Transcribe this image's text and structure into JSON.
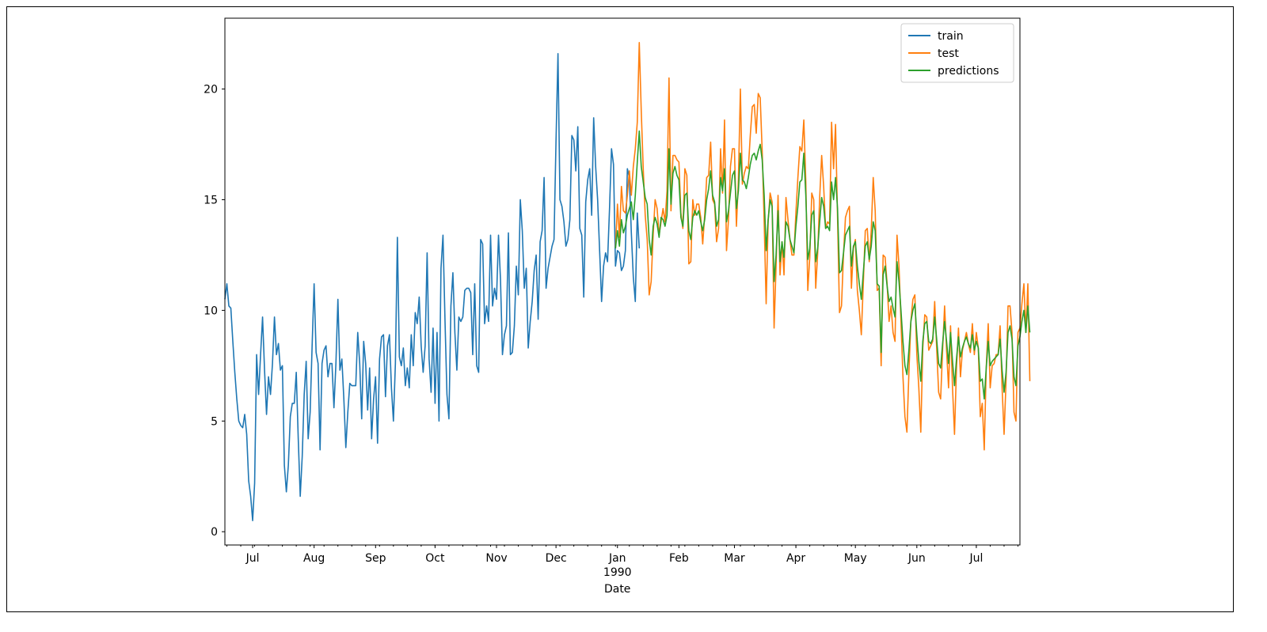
{
  "chart_data": {
    "type": "line",
    "title": "",
    "xlabel": "Date",
    "ylabel": "",
    "ylim": [
      -0.6,
      23.2
    ],
    "xlim": [
      "1989-06-17",
      "1990-07-23"
    ],
    "grid": false,
    "legend_position": "top-right",
    "y_ticks": [
      0,
      5,
      10,
      15,
      20
    ],
    "x_ticks": [
      {
        "date": "1989-07-01",
        "label": "Jul",
        "sublabel": ""
      },
      {
        "date": "1989-08-01",
        "label": "Aug",
        "sublabel": ""
      },
      {
        "date": "1989-09-01",
        "label": "Sep",
        "sublabel": ""
      },
      {
        "date": "1989-10-01",
        "label": "Oct",
        "sublabel": ""
      },
      {
        "date": "1989-11-01",
        "label": "Nov",
        "sublabel": ""
      },
      {
        "date": "1989-12-01",
        "label": "Dec",
        "sublabel": ""
      },
      {
        "date": "1990-01-01",
        "label": "Jan",
        "sublabel": "1990"
      },
      {
        "date": "1990-02-01",
        "label": "Feb",
        "sublabel": ""
      },
      {
        "date": "1990-03-01",
        "label": "Mar",
        "sublabel": ""
      },
      {
        "date": "1990-04-01",
        "label": "Apr",
        "sublabel": ""
      },
      {
        "date": "1990-05-01",
        "label": "May",
        "sublabel": ""
      },
      {
        "date": "1990-06-01",
        "label": "Jun",
        "sublabel": ""
      },
      {
        "date": "1990-07-01",
        "label": "Jul",
        "sublabel": ""
      }
    ],
    "series": [
      {
        "name": "train",
        "color": "#1f77b4",
        "start": "1989-06-17",
        "values": [
          10.5,
          11.2,
          10.2,
          10.1,
          8.6,
          7.2,
          6.0,
          5.0,
          4.8,
          4.7,
          5.3,
          4.4,
          2.3,
          1.6,
          0.5,
          2.2,
          8.0,
          6.2,
          8.0,
          9.7,
          7.3,
          5.3,
          7.0,
          6.2,
          7.6,
          9.7,
          8.0,
          8.5,
          7.3,
          7.5,
          3.0,
          1.8,
          3.0,
          5.2,
          5.8,
          5.8,
          7.2,
          4.2,
          1.6,
          3.4,
          6.2,
          7.7,
          4.2,
          5.4,
          8.4,
          11.2,
          8.1,
          7.6,
          3.7,
          7.6,
          8.2,
          8.4,
          7.0,
          7.6,
          7.6,
          5.6,
          7.6,
          10.5,
          7.3,
          7.8,
          6.0,
          3.8,
          5.4,
          6.7,
          6.6,
          6.6,
          6.6,
          9.0,
          7.6,
          5.1,
          8.6,
          7.6,
          5.5,
          7.4,
          4.2,
          6.0,
          7.0,
          4.0,
          7.8,
          8.8,
          8.9,
          6.1,
          8.4,
          8.9,
          6.5,
          5.0,
          7.6,
          13.3,
          7.9,
          7.5,
          8.3,
          6.6,
          7.4,
          6.5,
          8.9,
          7.5,
          9.9,
          9.4,
          10.6,
          8.4,
          7.2,
          8.4,
          12.6,
          7.8,
          6.3,
          9.2,
          5.8,
          9.0,
          5.0,
          11.9,
          13.4,
          9.6,
          6.2,
          5.1,
          10.2,
          11.7,
          9.0,
          7.3,
          9.7,
          9.5,
          9.7,
          10.9,
          11.0,
          11.0,
          10.8,
          8.0,
          11.2,
          7.5,
          7.2,
          13.2,
          13.0,
          9.4,
          10.2,
          9.5,
          13.4,
          10.2,
          11.0,
          10.5,
          13.4,
          11.4,
          8.0,
          8.9,
          9.3,
          13.5,
          8.0,
          8.1,
          9.3,
          12.0,
          10.7,
          15.0,
          13.6,
          11.0,
          11.9,
          8.3,
          9.5,
          10.4,
          11.8,
          12.5,
          9.6,
          13.1,
          13.6,
          16.0,
          11.0,
          11.9,
          12.4,
          12.9,
          13.2,
          17.6,
          21.6,
          15.0,
          14.7,
          14.0,
          12.9,
          13.2,
          14.1,
          17.9,
          17.7,
          16.3,
          18.3,
          13.7,
          13.4,
          10.6,
          14.9,
          15.9,
          16.4,
          14.3,
          18.7,
          16.5,
          15.0,
          12.7,
          10.4,
          12.0,
          12.6,
          12.2,
          14.6,
          17.3,
          16.6,
          12.0,
          12.7,
          12.6,
          11.8,
          12.0,
          12.7,
          16.4,
          16.0,
          13.5,
          11.5,
          10.4,
          14.4,
          12.8
        ]
      },
      {
        "name": "test",
        "color": "#ff7f0e",
        "start": "1989-12-31",
        "values": [
          12.8,
          14.8,
          13.3,
          15.6,
          14.5,
          14.4,
          15.2,
          16.3,
          15.2,
          16.5,
          17.3,
          18.5,
          22.1,
          19.0,
          16.4,
          14.3,
          13.2,
          10.7,
          11.3,
          13.4,
          15.0,
          14.6,
          13.4,
          14.0,
          14.6,
          14.0,
          15.4,
          20.5,
          14.5,
          17.0,
          17.0,
          16.8,
          16.7,
          14.4,
          13.7,
          16.4,
          16.1,
          12.1,
          12.2,
          15.0,
          14.3,
          14.8,
          14.8,
          14.2,
          13.0,
          14.3,
          16.0,
          16.1,
          17.6,
          15.0,
          14.8,
          13.1,
          13.7,
          17.3,
          15.3,
          18.6,
          12.7,
          14.1,
          16.5,
          17.3,
          17.3,
          13.8,
          15.9,
          20.0,
          15.7,
          16.2,
          16.5,
          16.4,
          17.9,
          19.2,
          19.3,
          18.0,
          19.8,
          19.6,
          17.2,
          14.0,
          10.3,
          14.0,
          15.3,
          14.9,
          9.2,
          12.0,
          15.2,
          11.6,
          13.1,
          11.6,
          15.1,
          14.1,
          13.2,
          12.5,
          12.5,
          14.4,
          16.0,
          17.4,
          17.2,
          18.6,
          15.8,
          10.9,
          12.4,
          15.3,
          15.0,
          11.0,
          12.6,
          15.1,
          17.0,
          15.6,
          13.7,
          14.0,
          13.9,
          18.5,
          16.4,
          18.4,
          14.2,
          9.9,
          10.2,
          12.5,
          14.2,
          14.5,
          14.7,
          11.0,
          12.8,
          13.2,
          10.9,
          10.0,
          8.9,
          11.2,
          13.6,
          13.7,
          12.2,
          13.6,
          16.0,
          14.5,
          10.9,
          11.0,
          7.5,
          12.5,
          12.4,
          11.2,
          9.5,
          10.2,
          9.0,
          8.6,
          13.4,
          12.0,
          9.5,
          7.0,
          5.2,
          4.5,
          7.2,
          9.5,
          10.5,
          10.7,
          8.0,
          6.5,
          4.5,
          8.3,
          9.8,
          9.7,
          8.2,
          8.4,
          8.6,
          10.4,
          8.3,
          6.3,
          6.0,
          8.2,
          10.2,
          8.2,
          6.5,
          9.3,
          6.5,
          4.4,
          7.4,
          9.2,
          7.0,
          8.2,
          8.6,
          9.0,
          8.5,
          8.1,
          9.4,
          8.0,
          9.0,
          8.3,
          5.2,
          5.8,
          3.7,
          7.4,
          9.4,
          6.5,
          7.5,
          7.6,
          8.0,
          8.0,
          9.3,
          6.5,
          4.4,
          6.8,
          10.2,
          10.2,
          9.0,
          5.4,
          5.0,
          9.0,
          9.2,
          10.3,
          11.2,
          9.0,
          11.2,
          6.8
        ]
      },
      {
        "name": "predictions",
        "color": "#2ca02c",
        "start": "1989-12-31",
        "values": [
          12.8,
          13.6,
          12.9,
          14.1,
          13.5,
          13.8,
          14.3,
          14.6,
          14.9,
          14.1,
          15.2,
          16.7,
          18.1,
          16.5,
          15.8,
          15.1,
          14.8,
          13.2,
          12.5,
          13.8,
          14.2,
          13.9,
          13.3,
          14.2,
          14.1,
          13.8,
          14.3,
          17.3,
          14.8,
          16.2,
          16.5,
          16.1,
          15.9,
          14.2,
          13.8,
          15.2,
          15.3,
          13.6,
          13.2,
          14.2,
          14.5,
          14.3,
          14.5,
          14.0,
          13.6,
          14.1,
          15.0,
          15.5,
          16.3,
          15.2,
          14.9,
          13.8,
          14.1,
          16.0,
          15.4,
          16.4,
          14.0,
          14.5,
          15.3,
          16.1,
          16.3,
          14.6,
          15.4,
          17.1,
          15.9,
          15.8,
          15.5,
          16.0,
          16.6,
          17.0,
          17.1,
          16.8,
          17.2,
          17.5,
          16.8,
          15.2,
          12.7,
          14.1,
          15.0,
          14.7,
          11.3,
          12.5,
          14.5,
          12.2,
          13.1,
          12.4,
          14.0,
          13.8,
          13.2,
          12.9,
          12.6,
          13.8,
          14.7,
          15.8,
          15.9,
          17.1,
          15.2,
          12.3,
          12.8,
          14.3,
          14.5,
          12.2,
          12.8,
          14.0,
          15.1,
          14.7,
          13.7,
          13.8,
          13.6,
          15.8,
          15.0,
          16.0,
          14.6,
          11.7,
          11.8,
          12.6,
          13.4,
          13.6,
          13.8,
          12.0,
          12.9,
          13.1,
          12.0,
          11.2,
          10.5,
          11.7,
          12.9,
          13.1,
          12.3,
          12.9,
          14.0,
          13.6,
          11.2,
          11.1,
          8.1,
          11.6,
          12.0,
          11.1,
          10.4,
          10.6,
          10.1,
          9.7,
          12.2,
          11.3,
          10.0,
          8.6,
          7.5,
          7.1,
          8.2,
          9.5,
          10.0,
          10.3,
          8.9,
          7.7,
          6.8,
          8.6,
          9.4,
          9.5,
          8.6,
          8.5,
          8.7,
          9.7,
          8.7,
          7.6,
          7.4,
          8.5,
          9.5,
          8.6,
          7.6,
          9.0,
          7.7,
          6.6,
          7.8,
          8.8,
          7.9,
          8.3,
          8.6,
          8.8,
          8.5,
          8.3,
          8.9,
          8.2,
          8.6,
          8.3,
          6.8,
          6.9,
          6.0,
          7.4,
          8.6,
          7.5,
          7.7,
          7.8,
          7.9,
          8.0,
          8.7,
          7.3,
          6.3,
          7.2,
          9.0,
          9.3,
          8.7,
          7.0,
          6.6,
          8.4,
          8.8,
          9.5,
          10.0,
          9.0,
          10.2,
          9.0
        ]
      }
    ]
  }
}
